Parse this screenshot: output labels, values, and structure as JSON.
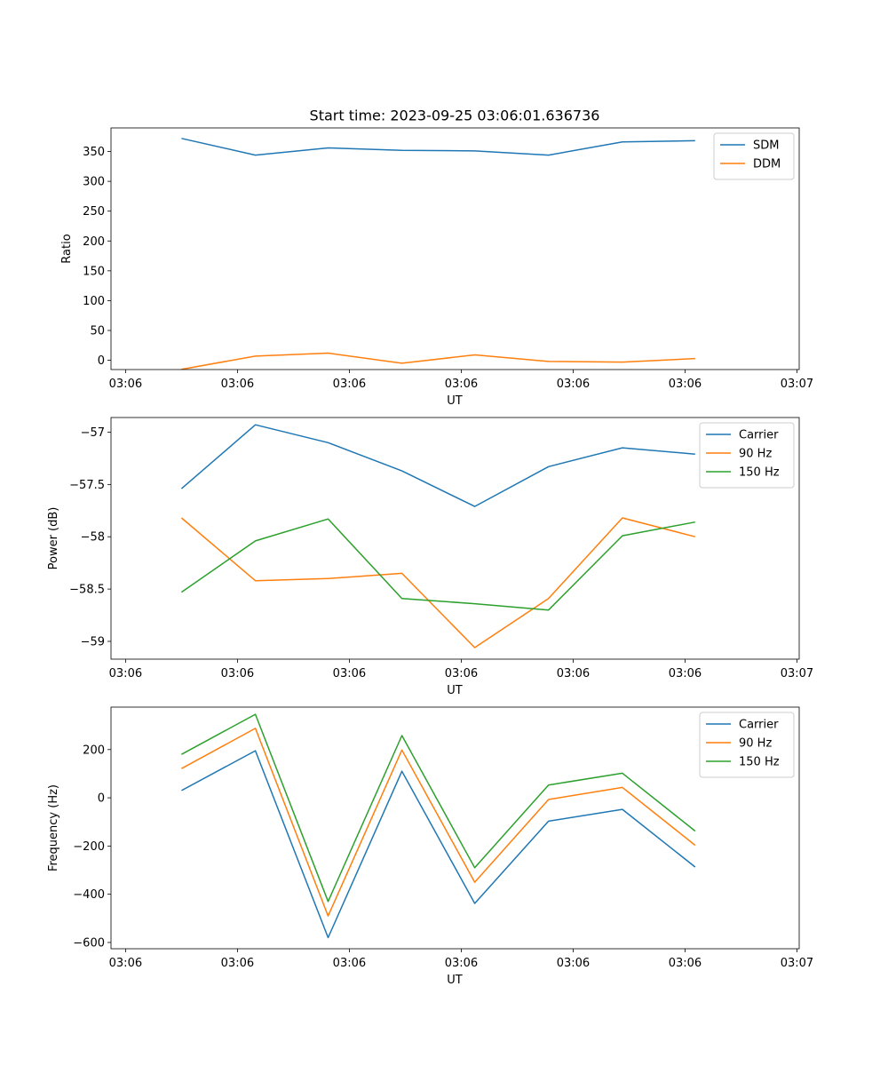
{
  "figure": {
    "title": "Start time: 2023-09-25 03:06:01.636736"
  },
  "chart_data": [
    {
      "type": "line",
      "xlabel": "UT",
      "ylabel": "Ratio",
      "x_ticks": [
        "03:06",
        "03:06",
        "03:06",
        "03:06",
        "03:06",
        "03:06",
        "03:07"
      ],
      "y_ticks": [
        0,
        50,
        100,
        150,
        200,
        250,
        300,
        350
      ],
      "ylim": [
        -15.5,
        389.5
      ],
      "grid": false,
      "legend_position": "top-right",
      "x": [
        0.5,
        1.16,
        1.81,
        2.47,
        3.12,
        3.78,
        4.44,
        5.09
      ],
      "xlim": [
        -0.13,
        6.02
      ],
      "series": [
        {
          "name": "SDM",
          "color": "#1f77b4",
          "values": [
            372,
            344,
            356,
            352,
            351,
            344,
            366,
            368
          ]
        },
        {
          "name": "DDM",
          "color": "#ff7f0e",
          "values": [
            -15,
            7,
            12,
            -5,
            9,
            -2,
            -3,
            3
          ]
        }
      ]
    },
    {
      "type": "line",
      "xlabel": "UT",
      "ylabel": "Power (dB)",
      "x_ticks": [
        "03:06",
        "03:06",
        "03:06",
        "03:06",
        "03:06",
        "03:06",
        "03:07"
      ],
      "y_ticks": [
        -59.0,
        -58.5,
        -58.0,
        -57.5,
        -57.0
      ],
      "ylim": [
        -59.17,
        -56.86
      ],
      "grid": false,
      "legend_position": "top-right",
      "x": [
        0.5,
        1.16,
        1.81,
        2.47,
        3.12,
        3.78,
        4.44,
        5.09
      ],
      "xlim": [
        -0.13,
        6.02
      ],
      "series": [
        {
          "name": "Carrier",
          "color": "#1f77b4",
          "values": [
            -57.54,
            -56.93,
            -57.1,
            -57.37,
            -57.71,
            -57.33,
            -57.15,
            -57.21
          ]
        },
        {
          "name": "90 Hz",
          "color": "#ff7f0e",
          "values": [
            -57.82,
            -58.42,
            -58.4,
            -58.35,
            -59.06,
            -58.59,
            -57.82,
            -58.0
          ]
        },
        {
          "name": "150 Hz",
          "color": "#2ca02c",
          "values": [
            -58.53,
            -58.04,
            -57.83,
            -58.59,
            -58.64,
            -58.7,
            -57.99,
            -57.86
          ]
        }
      ]
    },
    {
      "type": "line",
      "xlabel": "UT",
      "ylabel": "Frequency (Hz)",
      "x_ticks": [
        "03:06",
        "03:06",
        "03:06",
        "03:06",
        "03:06",
        "03:06",
        "03:07"
      ],
      "y_ticks": [
        -600,
        -400,
        -200,
        0,
        200
      ],
      "ylim": [
        -626,
        376
      ],
      "grid": false,
      "legend_position": "top-right",
      "x": [
        0.5,
        1.16,
        1.81,
        2.47,
        3.12,
        3.78,
        4.44,
        5.09
      ],
      "xlim": [
        -0.13,
        6.02
      ],
      "series": [
        {
          "name": "Carrier",
          "color": "#1f77b4",
          "values": [
            30,
            195,
            -580,
            110,
            -438,
            -97,
            -48,
            -287
          ]
        },
        {
          "name": "90 Hz",
          "color": "#ff7f0e",
          "values": [
            121,
            288,
            -490,
            198,
            -350,
            -7,
            43,
            -197
          ]
        },
        {
          "name": "150 Hz",
          "color": "#2ca02c",
          "values": [
            180,
            346,
            -430,
            258,
            -290,
            53,
            102,
            -138
          ]
        }
      ]
    }
  ]
}
